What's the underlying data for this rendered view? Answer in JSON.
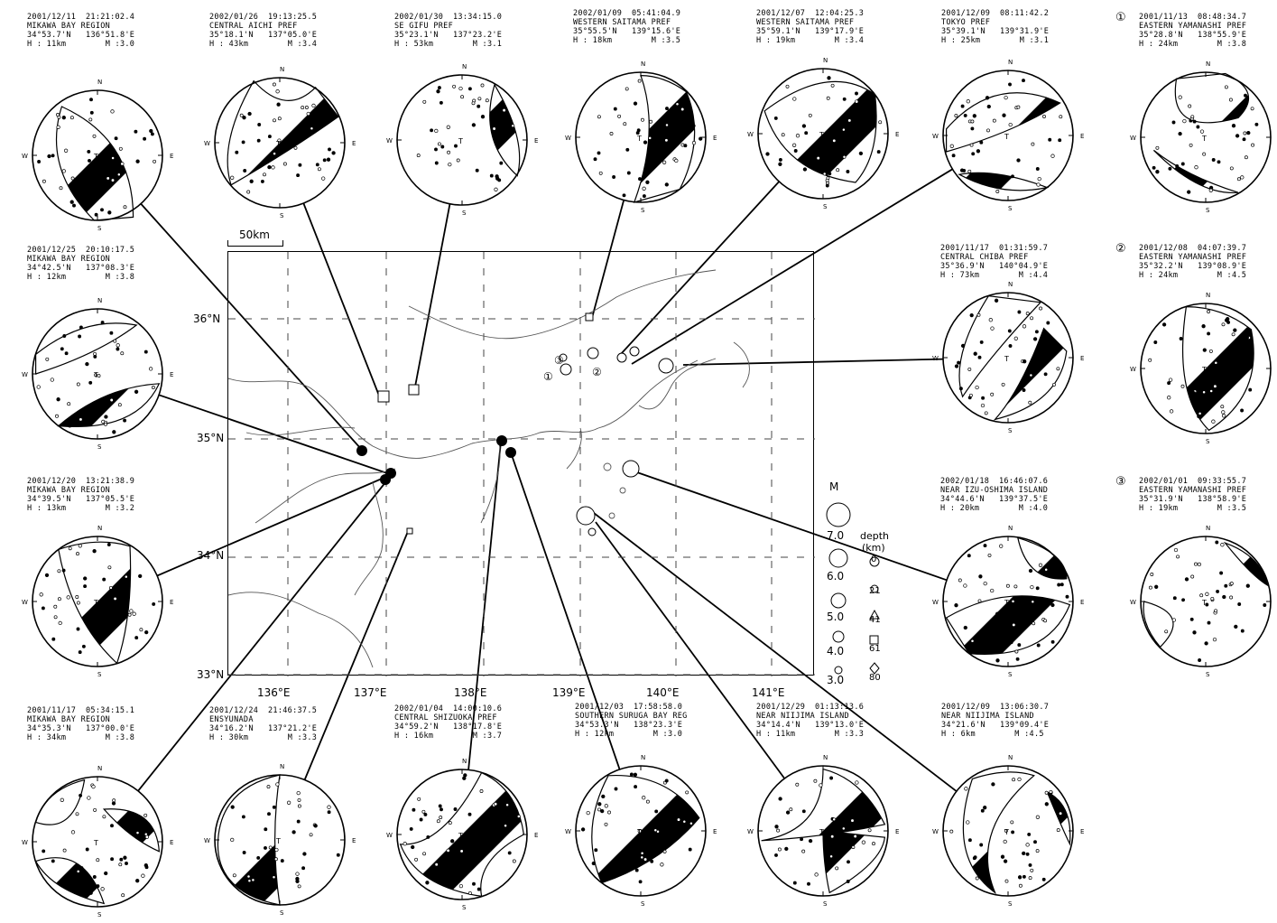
{
  "map": {
    "scale_label": "50km",
    "lat_labels": [
      "36°N",
      "35°N",
      "34°N",
      "33°N"
    ],
    "lon_labels": [
      "136°E",
      "137°E",
      "138°E",
      "139°E",
      "140°E",
      "141°E"
    ],
    "cardinals": {
      "n": "N",
      "e": "E",
      "s": "S",
      "w": "W"
    },
    "markers": [
      "①",
      "②",
      "③"
    ]
  },
  "legend": {
    "magnitude_title": "M",
    "magnitudes": [
      "7.0",
      "6.0",
      "5.0",
      "4.0",
      "3.0"
    ],
    "depth_title": "depth",
    "depth_unit": "(km)",
    "depths": [
      "0",
      "21",
      "41",
      "61",
      "80"
    ]
  },
  "events": [
    {
      "datetime": "2001/12/11  21:21:02.4",
      "region": "MIKAWA BAY REGION",
      "lat": "34°53.7'N",
      "lon": "136°51.8'E",
      "depth": "H : 11km",
      "mag": "M :3.0"
    },
    {
      "datetime": "2002/01/26  19:13:25.5",
      "region": "CENTRAL AICHI PREF",
      "lat": "35°18.1'N",
      "lon": "137°05.0'E",
      "depth": "H : 43km",
      "mag": "M :3.4"
    },
    {
      "datetime": "2002/01/30  13:34:15.0",
      "region": "SE GIFU PREF",
      "lat": "35°23.1'N",
      "lon": "137°23.2'E",
      "depth": "H : 53km",
      "mag": "M :3.1"
    },
    {
      "datetime": "2002/01/09  05:41:04.9",
      "region": "WESTERN SAITAMA PREF",
      "lat": "35°55.5'N",
      "lon": "139°15.6'E",
      "depth": "H : 18km",
      "mag": "M :3.5"
    },
    {
      "datetime": "2001/12/07  12:04:25.3",
      "region": "WESTERN SAITAMA PREF",
      "lat": "35°59.1'N",
      "lon": "139°17.9'E",
      "depth": "H : 19km",
      "mag": "M :3.4"
    },
    {
      "datetime": "2001/12/09  08:11:42.2",
      "region": "TOKYO PREF",
      "lat": "35°39.1'N",
      "lon": "139°31.9'E",
      "depth": "H : 25km",
      "mag": "M :3.1"
    },
    {
      "marker": "①",
      "datetime": "2001/11/13  08:48:34.7",
      "region": "EASTERN YAMANASHI PREF",
      "lat": "35°28.8'N",
      "lon": "138°55.9'E",
      "depth": "H : 24km",
      "mag": "M :3.8"
    },
    {
      "datetime": "2001/12/25  20:10:17.5",
      "region": "MIKAWA BAY REGION",
      "lat": "34°42.5'N",
      "lon": "137°08.3'E",
      "depth": "H : 12km",
      "mag": "M :3.8"
    },
    {
      "datetime": "2001/11/17  01:31:59.7",
      "region": "CENTRAL CHIBA PREF",
      "lat": "35°36.9'N",
      "lon": "140°04.9'E",
      "depth": "H : 73km",
      "mag": "M :4.4"
    },
    {
      "marker": "②",
      "datetime": "2001/12/08  04:07:39.7",
      "region": "EASTERN YAMANASHI PREF",
      "lat": "35°32.2'N",
      "lon": "139°08.9'E",
      "depth": "H : 24km",
      "mag": "M :4.5"
    },
    {
      "datetime": "2001/12/20  13:21:38.9",
      "region": "MIKAWA BAY REGION",
      "lat": "34°39.5'N",
      "lon": "137°05.5'E",
      "depth": "H : 13km",
      "mag": "M :3.2"
    },
    {
      "datetime": "2002/01/18  16:46:07.6",
      "region": "NEAR IZU-OSHIMA ISLAND",
      "lat": "34°44.6'N",
      "lon": "139°37.5'E",
      "depth": "H : 20km",
      "mag": "M :4.0"
    },
    {
      "marker": "③",
      "datetime": "2002/01/01  09:33:55.7",
      "region": "EASTERN YAMANASHI PREF",
      "lat": "35°31.9'N",
      "lon": "138°58.9'E",
      "depth": "H : 19km",
      "mag": "M :3.5"
    },
    {
      "datetime": "2001/11/17  05:34:15.1",
      "region": "MIKAWA BAY REGION",
      "lat": "34°35.3'N",
      "lon": "137°00.0'E",
      "depth": "H : 34km",
      "mag": "M :3.8"
    },
    {
      "datetime": "2001/12/24  21:46:37.5",
      "region": "ENSYUNADA",
      "lat": "34°16.2'N",
      "lon": "137°21.2'E",
      "depth": "H : 30km",
      "mag": "M :3.3"
    },
    {
      "datetime": "2002/01/04  14:00:10.6",
      "region": "CENTRAL SHIZUOKA PREF",
      "lat": "34°59.2'N",
      "lon": "138°17.8'E",
      "depth": "H : 16km",
      "mag": "M :3.7"
    },
    {
      "datetime": "2001/12/03  17:58:58.0",
      "region": "SOUTHERN SURUGA BAY REG",
      "lat": "34°53.3'N",
      "lon": "138°23.3'E",
      "depth": "H : 12km",
      "mag": "M :3.0"
    },
    {
      "datetime": "2001/12/29  01:13:13.6",
      "region": "NEAR NIIJIMA ISLAND",
      "lat": "34°14.4'N",
      "lon": "139°13.0'E",
      "depth": "H : 11km",
      "mag": "M :3.3"
    },
    {
      "datetime": "2001/12/09  13:06:30.7",
      "region": "NEAR NIIJIMA ISLAND",
      "lat": "34°21.6'N",
      "lon": "139°09.4'E",
      "depth": "H : 6km",
      "mag": "M :4.5"
    }
  ]
}
